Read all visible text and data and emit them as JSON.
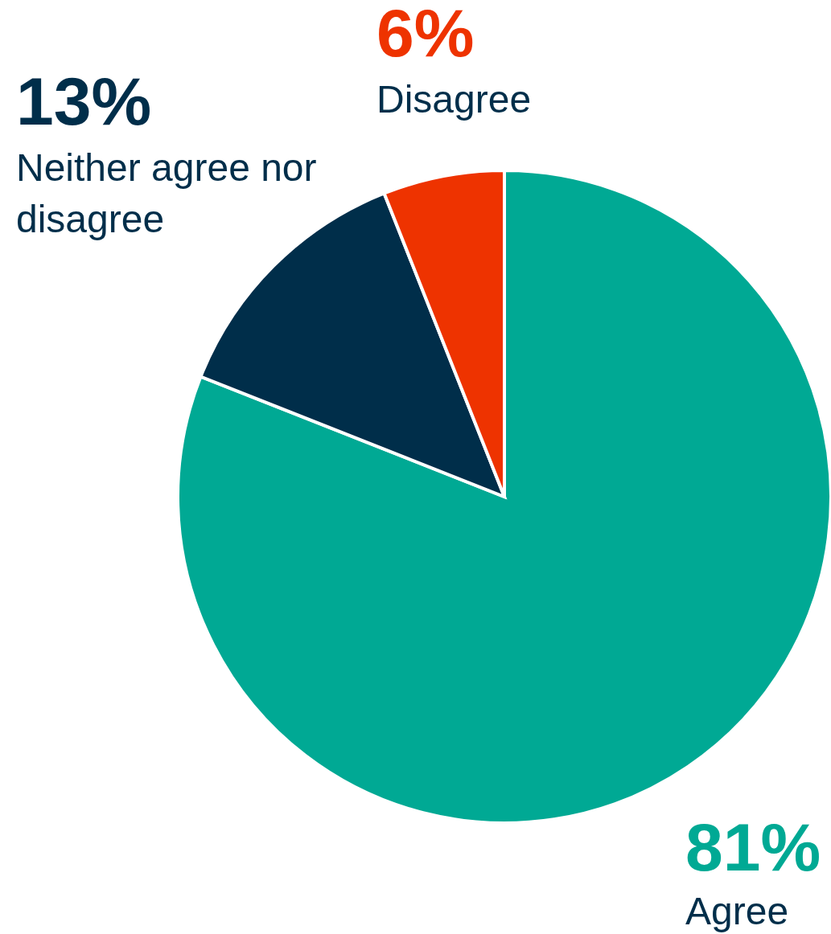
{
  "chart_data": {
    "type": "pie",
    "categories": [
      "Agree",
      "Neither agree nor disagree",
      "Disagree"
    ],
    "values": [
      81,
      13,
      6
    ],
    "colors": [
      "#00a994",
      "#002e4a",
      "#ee3300"
    ],
    "value_labels": [
      "81%",
      "13%",
      "6%"
    ]
  }
}
